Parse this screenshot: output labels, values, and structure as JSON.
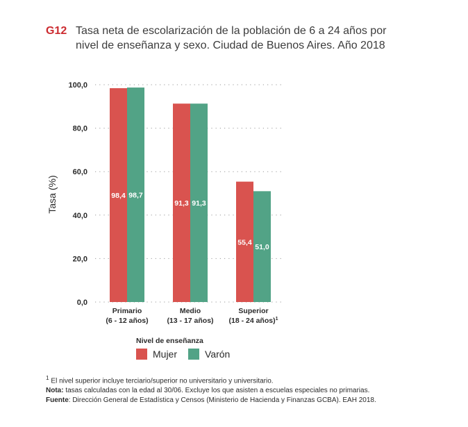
{
  "header": {
    "code": "G12",
    "title_line1": "Tasa neta de escolarización de la población de 6 a 24 años por",
    "title_line2": "nivel de enseñanza y sexo. Ciudad de Buenos Aires. Año 2018"
  },
  "chart_data": {
    "type": "bar",
    "categories": [
      {
        "line1": "Primario",
        "line2": "(6 - 12 años)",
        "sup": ""
      },
      {
        "line1": "Medio",
        "line2": "(13 - 17 años)",
        "sup": ""
      },
      {
        "line1": "Superior",
        "line2": "(18 - 24 años)",
        "sup": "1"
      }
    ],
    "series": [
      {
        "name": "Mujer",
        "color": "#d9534f",
        "values": [
          98.4,
          91.3,
          55.4
        ],
        "labels": [
          "98,4",
          "91,3",
          "55,4"
        ]
      },
      {
        "name": "Varón",
        "color": "#52a386",
        "values": [
          98.7,
          91.3,
          51.0
        ],
        "labels": [
          "98,7",
          "91,3",
          "51,0"
        ]
      }
    ],
    "ylabel": "Tasa (%)",
    "xlabel": "Nivel de enseñanza",
    "ylim": [
      0,
      100
    ],
    "yticks": [
      0,
      20,
      40,
      60,
      80,
      100
    ],
    "ytick_labels": [
      "0,0",
      "20,0",
      "40,0",
      "60,0",
      "80,0",
      "100,0"
    ],
    "grid": true,
    "legend_position": "bottom"
  },
  "footnotes": {
    "sup_mark": "1",
    "note1": " El nivel superior incluye terciario/superior no universitario y universitario.",
    "nota_label": "Nota:",
    "nota_text": " tasas calculadas con la edad al 30/06. Excluye los que asisten a escuelas especiales no primarias.",
    "fuente_label": "Fuente",
    "fuente_text": ": Dirección General de Estadística y Censos (Ministerio de Hacienda y Finanzas GCBA). EAH 2018."
  }
}
